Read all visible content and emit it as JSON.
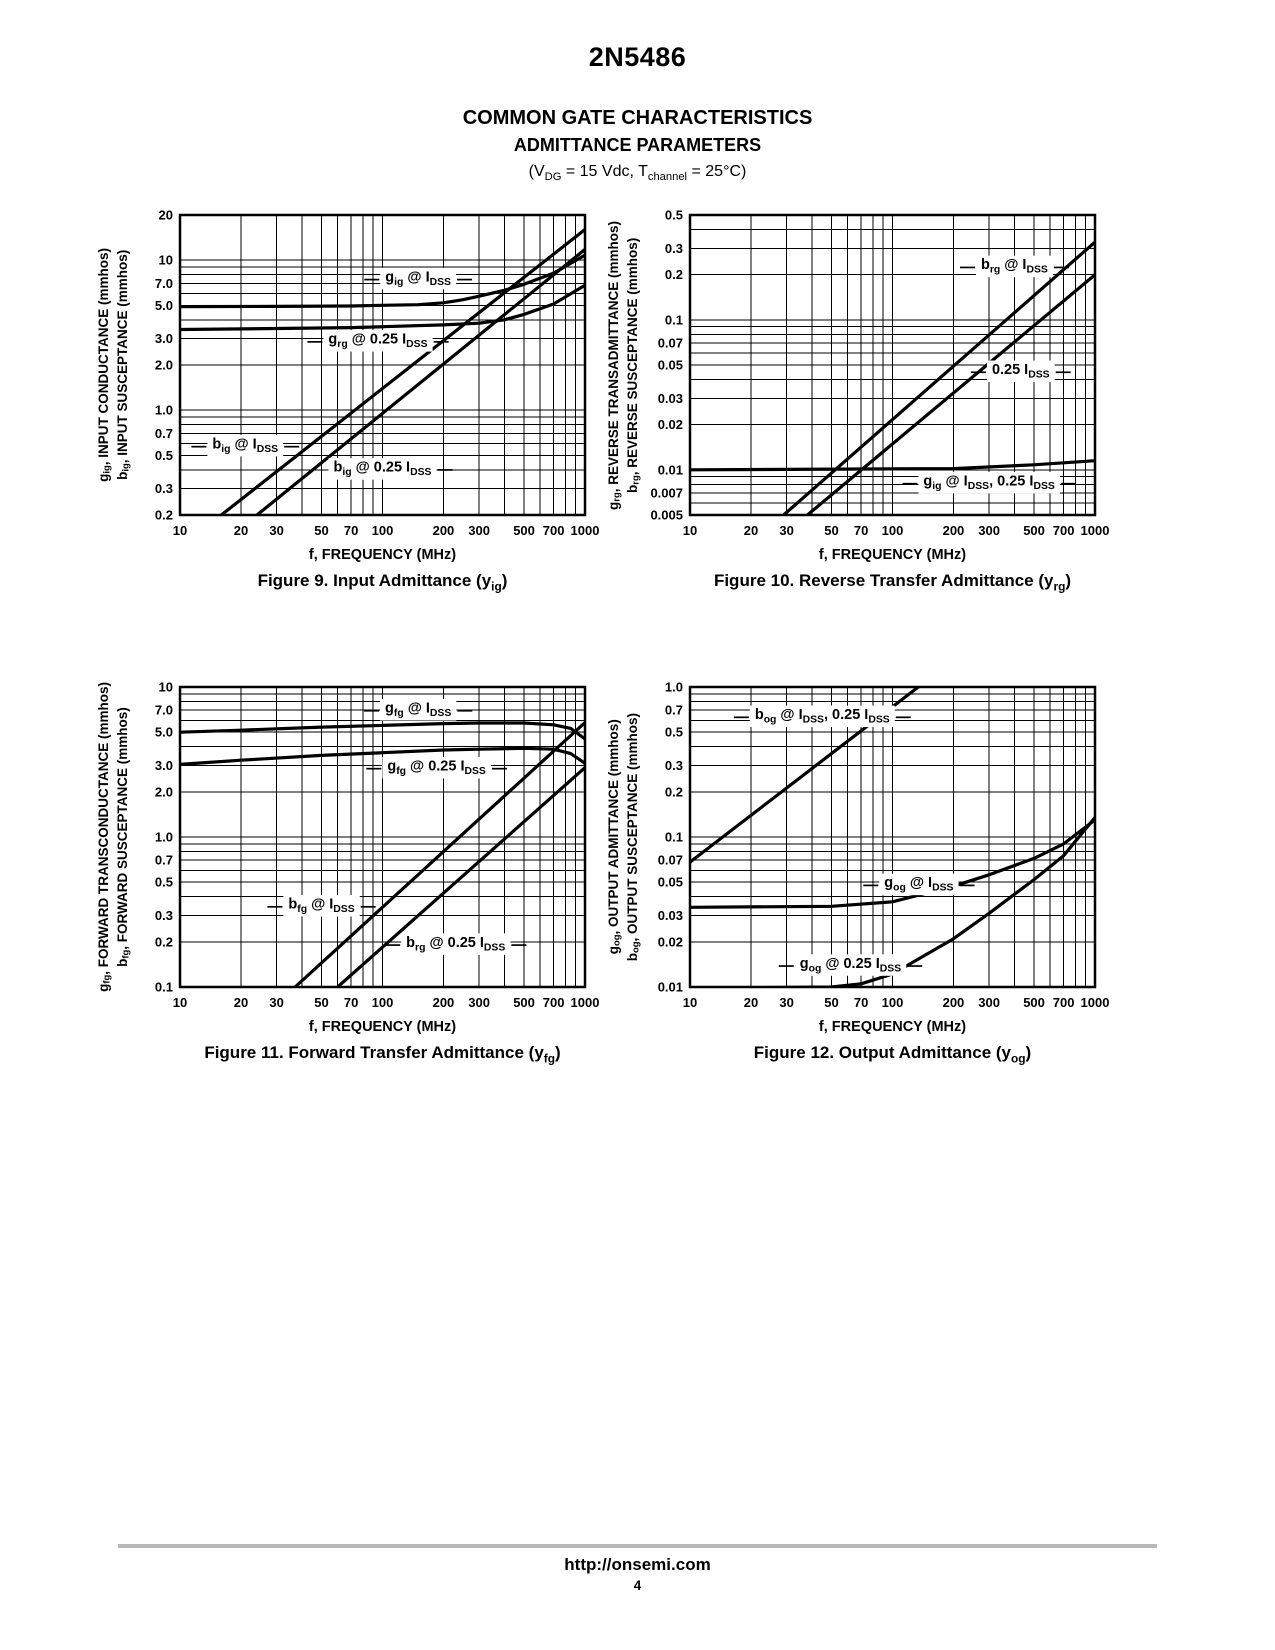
{
  "page": {
    "part_number": "2N5486",
    "section_title": "COMMON GATE CHARACTERISTICS",
    "section_subtitle": "ADMITTANCE PARAMETERS",
    "conditions": "(V~DG~ = 15 Vdc, T~channel~ = 25°C)",
    "footer": {
      "url": "http://onsemi.com",
      "page_number": "4"
    }
  },
  "chart_data": [
    {
      "id": "fig9",
      "type": "line",
      "x_scale": "log",
      "y_scale": "log",
      "caption": "Figure 9. Input Admittance (y~ig~)",
      "xlabel": "f, FREQUENCY (MHz)",
      "ylabel_left": "g~ig~, INPUT CONDUCTANCE (mmhos)",
      "ylabel_right": "b~ig~, INPUT SUSCEPTANCE (mmhos)",
      "x_axis": {
        "min": 10,
        "max": 1000,
        "ticks": [
          [
            10,
            "10"
          ],
          [
            20,
            "20"
          ],
          [
            30,
            "30"
          ],
          [
            50,
            "50"
          ],
          [
            70,
            "70"
          ],
          [
            100,
            "100"
          ],
          [
            200,
            "200"
          ],
          [
            300,
            "300"
          ],
          [
            500,
            "500"
          ],
          [
            700,
            "700"
          ],
          [
            1000,
            "1000"
          ]
        ]
      },
      "y_axis": {
        "min": 0.2,
        "max": 20,
        "ticks": [
          [
            20,
            "20"
          ],
          [
            10,
            "10"
          ],
          [
            7,
            "7.0"
          ],
          [
            5,
            "5.0"
          ],
          [
            3,
            "3.0"
          ],
          [
            2,
            "2.0"
          ],
          [
            1,
            "1.0"
          ],
          [
            0.7,
            "0.7"
          ],
          [
            0.5,
            "0.5"
          ],
          [
            0.3,
            "0.3"
          ],
          [
            0.2,
            "0.2"
          ]
        ]
      },
      "series": [
        {
          "name": "gig-at-idss",
          "label": "g~ig~ @ I~DSS~",
          "points": [
            [
              10,
              4.9
            ],
            [
              30,
              4.92
            ],
            [
              70,
              4.95
            ],
            [
              100,
              5.0
            ],
            [
              150,
              5.05
            ],
            [
              200,
              5.2
            ],
            [
              250,
              5.45
            ],
            [
              300,
              5.75
            ],
            [
              400,
              6.3
            ],
            [
              500,
              6.9
            ],
            [
              700,
              8.2
            ],
            [
              1000,
              10.8
            ]
          ]
        },
        {
          "name": "grg-at-quarter-idss",
          "label": "g~rg~ @ 0.25 I~DSS~",
          "points": [
            [
              10,
              3.45
            ],
            [
              30,
              3.5
            ],
            [
              70,
              3.55
            ],
            [
              100,
              3.6
            ],
            [
              200,
              3.7
            ],
            [
              300,
              3.8
            ],
            [
              400,
              4.0
            ],
            [
              500,
              4.35
            ],
            [
              700,
              5.1
            ],
            [
              1000,
              6.8
            ]
          ]
        },
        {
          "name": "big-at-idss",
          "label": "b~ig~ @ I~DSS~",
          "points": [
            [
              16,
              0.2
            ],
            [
              1000,
              16
            ]
          ]
        },
        {
          "name": "big-at-quarter-idss",
          "label": "b~ig~ @ 0.25 I~DSS~",
          "points": [
            [
              24,
              0.2
            ],
            [
              1000,
              11.8
            ]
          ]
        }
      ],
      "labels": [
        {
          "text": "g~ig~ @ I~DSS~",
          "x": 150,
          "y": 7.8,
          "leader_left": true,
          "leader_right": true
        },
        {
          "text": "g~rg~ @ 0.25 I~DSS~",
          "x": 95,
          "y": 3.0,
          "leader_left": true,
          "leader_right": true
        },
        {
          "text": "b~ig~ @ I~DSS~",
          "x": 21,
          "y": 0.6,
          "leader_left": true,
          "leader_right": true
        },
        {
          "text": "b~ig~ @ 0.25 I~DSS~",
          "x": 100,
          "y": 0.42,
          "leader_left": false,
          "leader_right": true
        }
      ]
    },
    {
      "id": "fig10",
      "type": "line",
      "x_scale": "log",
      "y_scale": "log",
      "caption": "Figure 10. Reverse Transfer Admittance (y~rg~)",
      "xlabel": "f, FREQUENCY (MHz)",
      "ylabel_left": "g~rg~, REVERSE TRANSADMITTANCE (mmhos)",
      "ylabel_right": "b~rg~, REVERSE SUSCEPTANCE (mmhos)",
      "x_axis": {
        "min": 10,
        "max": 1000,
        "ticks": [
          [
            10,
            "10"
          ],
          [
            20,
            "20"
          ],
          [
            30,
            "30"
          ],
          [
            50,
            "50"
          ],
          [
            70,
            "70"
          ],
          [
            100,
            "100"
          ],
          [
            200,
            "200"
          ],
          [
            300,
            "300"
          ],
          [
            500,
            "500"
          ],
          [
            700,
            "700"
          ],
          [
            1000,
            "1000"
          ]
        ]
      },
      "y_axis": {
        "min": 0.005,
        "max": 0.5,
        "ticks": [
          [
            0.5,
            "0.5"
          ],
          [
            0.3,
            "0.3"
          ],
          [
            0.2,
            "0.2"
          ],
          [
            0.1,
            "0.1"
          ],
          [
            0.07,
            "0.07"
          ],
          [
            0.05,
            "0.05"
          ],
          [
            0.03,
            "0.03"
          ],
          [
            0.02,
            "0.02"
          ],
          [
            0.01,
            "0.01"
          ],
          [
            0.007,
            "0.007"
          ],
          [
            0.005,
            "0.005"
          ]
        ]
      },
      "series": [
        {
          "name": "brg-at-idss",
          "label": "b~rg~ @ I~DSS~",
          "points": [
            [
              29,
              0.005
            ],
            [
              1000,
              0.33
            ]
          ]
        },
        {
          "name": "brg-at-quarter-idss",
          "label": "0.25 I~DSS~",
          "points": [
            [
              38,
              0.005
            ],
            [
              1000,
              0.2
            ]
          ]
        },
        {
          "name": "gig-at-idss-and-quarter",
          "label": "g~ig~ @ I~DSS~, 0.25 I~DSS~",
          "points": [
            [
              10,
              0.01
            ],
            [
              200,
              0.0102
            ],
            [
              500,
              0.0108
            ],
            [
              1000,
              0.0115
            ]
          ]
        }
      ],
      "labels": [
        {
          "text": "b~rg~ @ I~DSS~",
          "x": 400,
          "y": 0.235,
          "leader_left": true,
          "leader_right": true
        },
        {
          "text": "0.25 I~DSS~",
          "x": 430,
          "y": 0.047,
          "leader_left": true,
          "leader_right": true
        },
        {
          "text": "g~ig~ @ I~DSS~, 0.25 I~DSS~",
          "x": 300,
          "y": 0.0085,
          "leader_left": true,
          "leader_right": true
        }
      ]
    },
    {
      "id": "fig11",
      "type": "line",
      "x_scale": "log",
      "y_scale": "log",
      "caption": "Figure 11. Forward Transfer Admittance (y~fg~)",
      "xlabel": "f, FREQUENCY (MHz)",
      "ylabel_left": "g~fg~, FORWARD TRANSCONDUCTANCE (mmhos)",
      "ylabel_right": "b~fg~, FORWARD SUSCEPTANCE (mmhos)",
      "x_axis": {
        "min": 10,
        "max": 1000,
        "ticks": [
          [
            10,
            "10"
          ],
          [
            20,
            "20"
          ],
          [
            30,
            "30"
          ],
          [
            50,
            "50"
          ],
          [
            70,
            "70"
          ],
          [
            100,
            "100"
          ],
          [
            200,
            "200"
          ],
          [
            300,
            "300"
          ],
          [
            500,
            "500"
          ],
          [
            700,
            "700"
          ],
          [
            1000,
            "1000"
          ]
        ]
      },
      "y_axis": {
        "min": 0.1,
        "max": 10,
        "ticks": [
          [
            10,
            "10"
          ],
          [
            7,
            "7.0"
          ],
          [
            5,
            "5.0"
          ],
          [
            3,
            "3.0"
          ],
          [
            2,
            "2.0"
          ],
          [
            1,
            "1.0"
          ],
          [
            0.7,
            "0.7"
          ],
          [
            0.5,
            "0.5"
          ],
          [
            0.3,
            "0.3"
          ],
          [
            0.2,
            "0.2"
          ],
          [
            0.1,
            "0.1"
          ]
        ]
      },
      "series": [
        {
          "name": "gfg-at-idss",
          "label": "g~fg~ @ I~DSS~",
          "points": [
            [
              10,
              5.0
            ],
            [
              20,
              5.15
            ],
            [
              50,
              5.4
            ],
            [
              100,
              5.55
            ],
            [
              200,
              5.7
            ],
            [
              300,
              5.75
            ],
            [
              500,
              5.75
            ],
            [
              700,
              5.6
            ],
            [
              850,
              5.3
            ],
            [
              1000,
              4.5
            ]
          ]
        },
        {
          "name": "gfg-at-quarter-idss",
          "label": "g~fg~ @ 0.25 I~DSS~",
          "points": [
            [
              10,
              3.05
            ],
            [
              20,
              3.25
            ],
            [
              50,
              3.5
            ],
            [
              100,
              3.65
            ],
            [
              200,
              3.8
            ],
            [
              300,
              3.85
            ],
            [
              500,
              3.9
            ],
            [
              700,
              3.85
            ],
            [
              850,
              3.6
            ],
            [
              1000,
              3.1
            ]
          ]
        },
        {
          "name": "bfg-at-idss",
          "label": "b~fg~ @ I~DSS~",
          "points": [
            [
              37,
              0.1
            ],
            [
              1000,
              5.8
            ]
          ]
        },
        {
          "name": "brg-at-quarter-idss",
          "label": "b~rg~ @ 0.25 I~DSS~",
          "points": [
            [
              60,
              0.1
            ],
            [
              1000,
              2.9
            ]
          ]
        }
      ],
      "labels": [
        {
          "text": "g~fg~ @ I~DSS~",
          "x": 150,
          "y": 7.3,
          "leader_left": true,
          "leader_right": true
        },
        {
          "text": "g~fg~ @ 0.25 I~DSS~",
          "x": 185,
          "y": 3.0,
          "leader_left": true,
          "leader_right": true
        },
        {
          "text": "b~fg~ @ I~DSS~",
          "x": 50,
          "y": 0.36,
          "leader_left": true,
          "leader_right": true
        },
        {
          "text": "b~rg~ @ 0.25 I~DSS~",
          "x": 230,
          "y": 0.2,
          "leader_left": true,
          "leader_right": true
        }
      ]
    },
    {
      "id": "fig12",
      "type": "line",
      "x_scale": "log",
      "y_scale": "log",
      "caption": "Figure 12. Output Admittance (y~og~)",
      "xlabel": "f, FREQUENCY (MHz)",
      "ylabel_left": "g~og~, OUTPUT ADMITTANCE (mmhos)",
      "ylabel_right": "b~og~, OUTPUT SUSCEPTANCE (mmhos)",
      "x_axis": {
        "min": 10,
        "max": 1000,
        "ticks": [
          [
            10,
            "10"
          ],
          [
            20,
            "20"
          ],
          [
            30,
            "30"
          ],
          [
            50,
            "50"
          ],
          [
            70,
            "70"
          ],
          [
            100,
            "100"
          ],
          [
            200,
            "200"
          ],
          [
            300,
            "300"
          ],
          [
            500,
            "500"
          ],
          [
            700,
            "700"
          ],
          [
            1000,
            "1000"
          ]
        ]
      },
      "y_axis": {
        "min": 0.01,
        "max": 1.0,
        "ticks": [
          [
            1,
            "1.0"
          ],
          [
            0.7,
            "0.7"
          ],
          [
            0.5,
            "0.5"
          ],
          [
            0.3,
            "0.3"
          ],
          [
            0.2,
            "0.2"
          ],
          [
            0.1,
            "0.1"
          ],
          [
            0.07,
            "0.07"
          ],
          [
            0.05,
            "0.05"
          ],
          [
            0.03,
            "0.03"
          ],
          [
            0.02,
            "0.02"
          ],
          [
            0.01,
            "0.01"
          ]
        ]
      },
      "series": [
        {
          "name": "bog-at-idss-and-quarter",
          "label": "b~og~ @ I~DSS~, 0.25 I~DSS~",
          "points": [
            [
              10,
              0.068
            ],
            [
              160,
              1.2
            ]
          ]
        },
        {
          "name": "gog-at-idss",
          "label": "g~og~ @ I~DSS~",
          "points": [
            [
              10,
              0.034
            ],
            [
              50,
              0.0345
            ],
            [
              100,
              0.037
            ],
            [
              200,
              0.047
            ],
            [
              300,
              0.056
            ],
            [
              500,
              0.072
            ],
            [
              700,
              0.09
            ],
            [
              1000,
              0.13
            ]
          ]
        },
        {
          "name": "gog-at-quarter-idss",
          "label": "g~og~ @ 0.25 I~DSS~",
          "points": [
            [
              10,
              0.0098
            ],
            [
              50,
              0.01
            ],
            [
              70,
              0.0105
            ],
            [
              100,
              0.0122
            ],
            [
              200,
              0.021
            ],
            [
              300,
              0.031
            ],
            [
              500,
              0.052
            ],
            [
              700,
              0.075
            ],
            [
              1000,
              0.135
            ]
          ]
        }
      ],
      "labels": [
        {
          "text": "b~og~ @ I~DSS~, 0.25 I~DSS~",
          "x": 45,
          "y": 0.66,
          "leader_left": true,
          "leader_right": true
        },
        {
          "text": "g~og~ @ I~DSS~",
          "x": 135,
          "y": 0.05,
          "leader_left": true,
          "leader_right": true
        },
        {
          "text": "g~og~ @ 0.25 I~DSS~",
          "x": 62,
          "y": 0.0145,
          "leader_left": true,
          "leader_right": true
        }
      ]
    }
  ]
}
